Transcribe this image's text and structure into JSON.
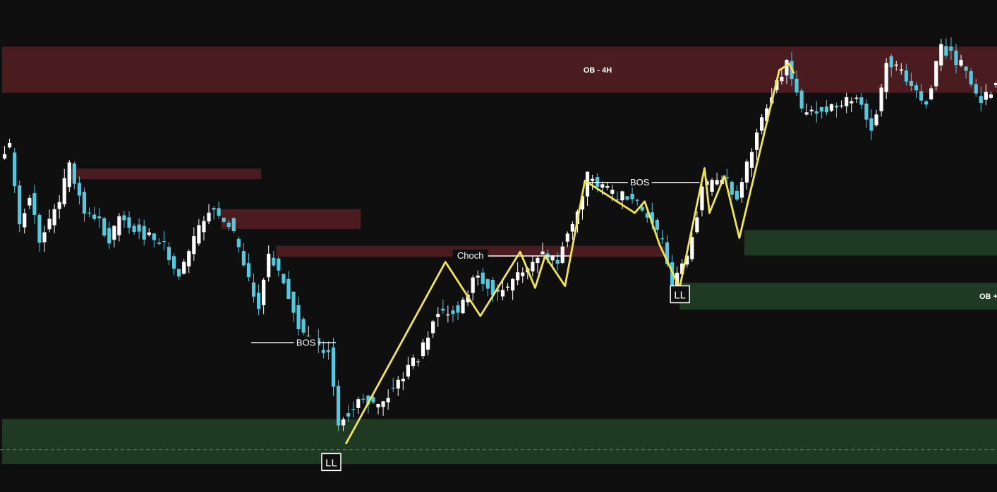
{
  "chart_data": {
    "type": "candlestick",
    "title": "",
    "xlabel": "",
    "ylabel": "",
    "grid": false,
    "colors": {
      "background": "#0f0f0f",
      "up_candle": "#ffffff",
      "down_candle": "#56c7dc",
      "supply_zone": "#4a1c1f",
      "demand_zone": "#1f3a22",
      "structure_line": "#f2e45a",
      "marker_line": "#ffffff",
      "dashed_line": "#7a7a7a"
    },
    "zones": [
      {
        "type": "supply",
        "label": "OB - 4H",
        "from_candle": 0,
        "to_candle": 200,
        "top": 1130,
        "bottom": 1120
      },
      {
        "type": "supply",
        "label": "",
        "from_candle": 13,
        "to_candle": 52,
        "top": 1103.6,
        "bottom": 1101.3
      },
      {
        "type": "supply",
        "label": "",
        "from_candle": 44,
        "to_candle": 72,
        "top": 1094.8,
        "bottom": 1090.5
      },
      {
        "type": "supply",
        "label": "",
        "from_candle": 55,
        "to_candle": 133,
        "top": 1086.9,
        "bottom": 1084.5
      },
      {
        "type": "demand",
        "label": "",
        "from_candle": 149,
        "to_candle": 200,
        "top": 1090.3,
        "bottom": 1084.8
      },
      {
        "type": "demand",
        "label": "OB +",
        "from_candle": 136,
        "to_candle": 200,
        "top": 1078.9,
        "bottom": 1073.1
      },
      {
        "type": "demand",
        "label": "",
        "from_candle": 0,
        "to_candle": 200,
        "top": 1049.4,
        "bottom": 1039.7
      }
    ],
    "structure_labels": [
      {
        "text": "BOS",
        "candle": 61,
        "price": 1065.9,
        "line_from": 50,
        "line_to": 67
      },
      {
        "text": "Choch",
        "candle": 94,
        "price": 1084.7,
        "line_from": 94,
        "line_to": 114
      },
      {
        "text": "BOS",
        "candle": 128,
        "price": 1100.6,
        "line_from": 117,
        "line_to": 140
      }
    ],
    "swing_labels": [
      {
        "text": "LL",
        "candle": 66,
        "price": 1040.1
      },
      {
        "text": "LL",
        "candle": 136,
        "price": 1076.4
      }
    ],
    "zigzag": [
      [
        69,
        1044.0
      ],
      [
        89,
        1083.4
      ],
      [
        96,
        1071.7
      ],
      [
        104,
        1085.6
      ],
      [
        107,
        1077.8
      ],
      [
        109,
        1084.7
      ],
      [
        113,
        1078.2
      ],
      [
        117,
        1101.0
      ],
      [
        127,
        1094.0
      ],
      [
        129,
        1096.5
      ],
      [
        132,
        1087.1
      ],
      [
        136,
        1077.8
      ],
      [
        141,
        1103.7
      ],
      [
        142,
        1094.0
      ],
      [
        145,
        1102.0
      ],
      [
        148,
        1088.6
      ],
      [
        156,
        1124.9
      ],
      [
        158,
        1126.3
      ],
      [
        159,
        1124.2
      ]
    ],
    "dashed_level": 1042.8,
    "ylim": [
      1033.6,
      1140.1
    ]
  }
}
